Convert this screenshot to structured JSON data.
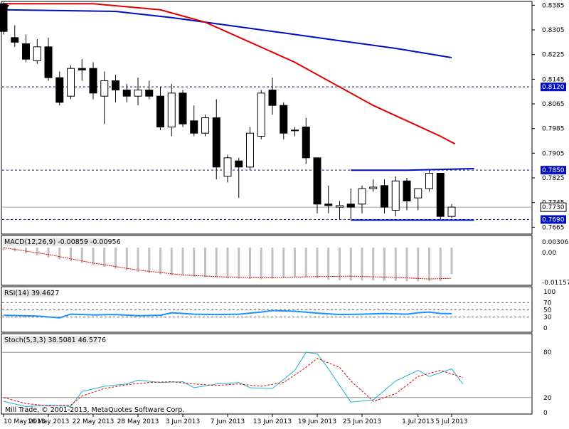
{
  "copyright": "Mill Trade, © 2001-2013, MetaQuotes Software Corp.",
  "colors": {
    "background": "#ffffff",
    "grid_dashed": "#1a1a80",
    "ma_fast": "#e00000",
    "ma_slow": "#0010c0",
    "bear_candle": "#000000",
    "bull_candle": "#ffffff",
    "macd_hist": "#c0c0c0",
    "macd_signal": "#e00000",
    "rsi_line": "#1e90ff",
    "stoch_main": "#20b2d0",
    "stoch_signal": "#e00000",
    "price_box": "#0010c0"
  },
  "chart_data": [
    {
      "type": "candlestick",
      "pane": "price",
      "ylim": [
        0.7645,
        0.8395
      ],
      "y_ticks": [
        "0.8385",
        "0.8305",
        "0.8225",
        "0.8145",
        "0.8065",
        "0.7985",
        "0.7905",
        "0.7825",
        "0.7745",
        "0.7665"
      ],
      "x_ticks": [
        "10 May 2013",
        "16 May 2013",
        "22 May 2013",
        "28 May 2013",
        "3 Jun 2013",
        "7 Jun 2013",
        "13 Jun 2013",
        "19 Jun 2013",
        "25 Jun 2013",
        "1 Jul 2013",
        "5 Jul 2013"
      ],
      "price_labels": [
        {
          "text": "0.8120",
          "value": 0.812,
          "style": "highlight"
        },
        {
          "text": "0.7850",
          "value": 0.785,
          "style": "highlight"
        },
        {
          "text": "0.7730",
          "value": 0.773,
          "style": "plain"
        },
        {
          "text": "0.7690",
          "value": 0.769,
          "style": "highlight"
        }
      ],
      "horizontal_levels": [
        0.812,
        0.785,
        0.769
      ],
      "current_price": 0.773,
      "ohlc": [
        [
          0.839,
          0.8395,
          0.829,
          0.83
        ],
        [
          0.828,
          0.832,
          0.825,
          0.8265
        ],
        [
          0.826,
          0.829,
          0.82,
          0.821
        ],
        [
          0.8205,
          0.8275,
          0.8195,
          0.825
        ],
        [
          0.825,
          0.828,
          0.814,
          0.815
        ],
        [
          0.815,
          0.817,
          0.806,
          0.807
        ],
        [
          0.809,
          0.819,
          0.808,
          0.818
        ],
        [
          0.818,
          0.821,
          0.814,
          0.8175
        ],
        [
          0.818,
          0.82,
          0.808,
          0.81
        ],
        [
          0.809,
          0.817,
          0.8,
          0.814
        ],
        [
          0.814,
          0.816,
          0.807,
          0.811
        ],
        [
          0.811,
          0.813,
          0.807,
          0.809
        ],
        [
          0.809,
          0.815,
          0.806,
          0.811
        ],
        [
          0.811,
          0.814,
          0.808,
          0.809
        ],
        [
          0.809,
          0.812,
          0.798,
          0.799
        ],
        [
          0.799,
          0.813,
          0.796,
          0.81
        ],
        [
          0.81,
          0.811,
          0.799,
          0.8
        ],
        [
          0.801,
          0.806,
          0.796,
          0.797
        ],
        [
          0.797,
          0.803,
          0.796,
          0.802
        ],
        [
          0.802,
          0.808,
          0.782,
          0.786
        ],
        [
          0.783,
          0.79,
          0.781,
          0.789
        ],
        [
          0.788,
          0.789,
          0.776,
          0.786
        ],
        [
          0.786,
          0.799,
          0.785,
          0.797
        ],
        [
          0.796,
          0.811,
          0.795,
          0.81
        ],
        [
          0.811,
          0.815,
          0.803,
          0.806
        ],
        [
          0.806,
          0.807,
          0.795,
          0.797
        ],
        [
          0.798,
          0.799,
          0.796,
          0.798
        ],
        [
          0.799,
          0.802,
          0.787,
          0.789
        ],
        [
          0.789,
          0.789,
          0.771,
          0.774
        ],
        [
          0.774,
          0.78,
          0.771,
          0.7735
        ],
        [
          0.773,
          0.775,
          0.769,
          0.7735
        ],
        [
          0.774,
          0.779,
          0.769,
          0.773
        ],
        [
          0.774,
          0.78,
          0.771,
          0.779
        ],
        [
          0.779,
          0.782,
          0.778,
          0.7795
        ],
        [
          0.78,
          0.782,
          0.771,
          0.773
        ],
        [
          0.772,
          0.783,
          0.77,
          0.7815
        ],
        [
          0.7815,
          0.7825,
          0.772,
          0.775
        ],
        [
          0.776,
          0.779,
          0.772,
          0.779
        ],
        [
          0.779,
          0.785,
          0.778,
          0.784
        ],
        [
          0.784,
          0.784,
          0.769,
          0.77
        ],
        [
          0.77,
          0.774,
          0.7695,
          0.773
        ]
      ],
      "ma_fast": [
        [
          0,
          0.839
        ],
        [
          8,
          0.839
        ],
        [
          14,
          0.837
        ],
        [
          18,
          0.833
        ],
        [
          22,
          0.8265
        ],
        [
          26,
          0.82
        ],
        [
          30,
          0.812
        ],
        [
          33,
          0.806
        ],
        [
          36,
          0.801
        ],
        [
          39,
          0.796
        ],
        [
          40.3,
          0.7935
        ]
      ],
      "ma_slow": [
        [
          0,
          0.837
        ],
        [
          10,
          0.8365
        ],
        [
          15,
          0.8345
        ],
        [
          20,
          0.832
        ],
        [
          25,
          0.8295
        ],
        [
          30,
          0.827
        ],
        [
          35,
          0.8245
        ],
        [
          40,
          0.8215
        ]
      ],
      "channel_upper": [
        [
          31,
          0.785
        ],
        [
          36,
          0.785
        ],
        [
          42,
          0.7855
        ]
      ],
      "channel_lower": [
        [
          31,
          0.7688
        ],
        [
          42,
          0.7688
        ]
      ]
    },
    {
      "type": "bar",
      "pane": "macd",
      "title": "MACD(12,26,9) -0.00859 -0.00956",
      "y_ticks": [
        "0.00306",
        "0.00",
        "-0.01157"
      ],
      "ylim": [
        -0.01157,
        0.00306
      ],
      "histogram": [
        -0.0008,
        -0.0012,
        -0.0018,
        -0.0025,
        -0.0032,
        -0.0038,
        -0.0044,
        -0.005,
        -0.0056,
        -0.0062,
        -0.0068,
        -0.0074,
        -0.0079,
        -0.0083,
        -0.0087,
        -0.009,
        -0.0092,
        -0.0094,
        -0.0096,
        -0.0098,
        -0.01,
        -0.0101,
        -0.0102,
        -0.0103,
        -0.0101,
        -0.0098,
        -0.0096,
        -0.0096,
        -0.01,
        -0.0104,
        -0.0106,
        -0.0107,
        -0.0107,
        -0.0107,
        -0.0108,
        -0.0108,
        -0.0109,
        -0.0109,
        -0.0109,
        -0.0109,
        -0.0086
      ],
      "signal": [
        [
          0,
          0.0
        ],
        [
          4,
          -0.0022
        ],
        [
          8,
          -0.005
        ],
        [
          12,
          -0.0073
        ],
        [
          16,
          -0.0089
        ],
        [
          20,
          -0.0096
        ],
        [
          24,
          -0.0098
        ],
        [
          28,
          -0.0094
        ],
        [
          31,
          -0.0093
        ],
        [
          35,
          -0.0097
        ],
        [
          38,
          -0.0102
        ],
        [
          40,
          -0.01
        ]
      ]
    },
    {
      "type": "line",
      "pane": "rsi",
      "title": "RSI(14) 39.4627",
      "y_ticks": [
        "100",
        "70",
        "50",
        "30",
        "0"
      ],
      "ylim": [
        0,
        100
      ],
      "levels": [
        70,
        50,
        30
      ],
      "values": [
        [
          0,
          35
        ],
        [
          3,
          33
        ],
        [
          5,
          28
        ],
        [
          6,
          38
        ],
        [
          8,
          36
        ],
        [
          10,
          37
        ],
        [
          12,
          34
        ],
        [
          14,
          35
        ],
        [
          15,
          42
        ],
        [
          17,
          38
        ],
        [
          19,
          37
        ],
        [
          21,
          38
        ],
        [
          23,
          44
        ],
        [
          24,
          48
        ],
        [
          26,
          46
        ],
        [
          28,
          41
        ],
        [
          30,
          37
        ],
        [
          32,
          38
        ],
        [
          34,
          40
        ],
        [
          36,
          38
        ],
        [
          37,
          42
        ],
        [
          38,
          44
        ],
        [
          39,
          40
        ],
        [
          40,
          39.5
        ]
      ]
    },
    {
      "type": "line",
      "pane": "stochastic",
      "title": "Stoch(5,3,3) 38.5081 46.5776",
      "y_ticks": [
        "80",
        "20",
        "0"
      ],
      "ylim": [
        0,
        100
      ],
      "levels": [
        80,
        20
      ],
      "main": [
        [
          0,
          15
        ],
        [
          2,
          8
        ],
        [
          4,
          10
        ],
        [
          6,
          8
        ],
        [
          7,
          28
        ],
        [
          9,
          35
        ],
        [
          11,
          38
        ],
        [
          12,
          43
        ],
        [
          14,
          40
        ],
        [
          16,
          41
        ],
        [
          17,
          33
        ],
        [
          19,
          38
        ],
        [
          21,
          40
        ],
        [
          22,
          33
        ],
        [
          24,
          32
        ],
        [
          26,
          56
        ],
        [
          27,
          80
        ],
        [
          28,
          78
        ],
        [
          29,
          58
        ],
        [
          31,
          14
        ],
        [
          33,
          17
        ],
        [
          35,
          42
        ],
        [
          37,
          56
        ],
        [
          38,
          48
        ],
        [
          40,
          58
        ],
        [
          41,
          38
        ]
      ],
      "signal": [
        [
          0,
          20
        ],
        [
          2,
          12
        ],
        [
          4,
          9
        ],
        [
          6,
          10
        ],
        [
          7,
          22
        ],
        [
          9,
          32
        ],
        [
          11,
          37
        ],
        [
          13,
          40
        ],
        [
          15,
          41
        ],
        [
          17,
          38
        ],
        [
          19,
          36
        ],
        [
          21,
          38
        ],
        [
          23,
          35
        ],
        [
          25,
          40
        ],
        [
          27,
          60
        ],
        [
          28,
          72
        ],
        [
          30,
          60
        ],
        [
          31,
          42
        ],
        [
          33,
          15
        ],
        [
          35,
          25
        ],
        [
          37,
          48
        ],
        [
          39,
          56
        ],
        [
          41,
          46.5
        ]
      ]
    }
  ]
}
